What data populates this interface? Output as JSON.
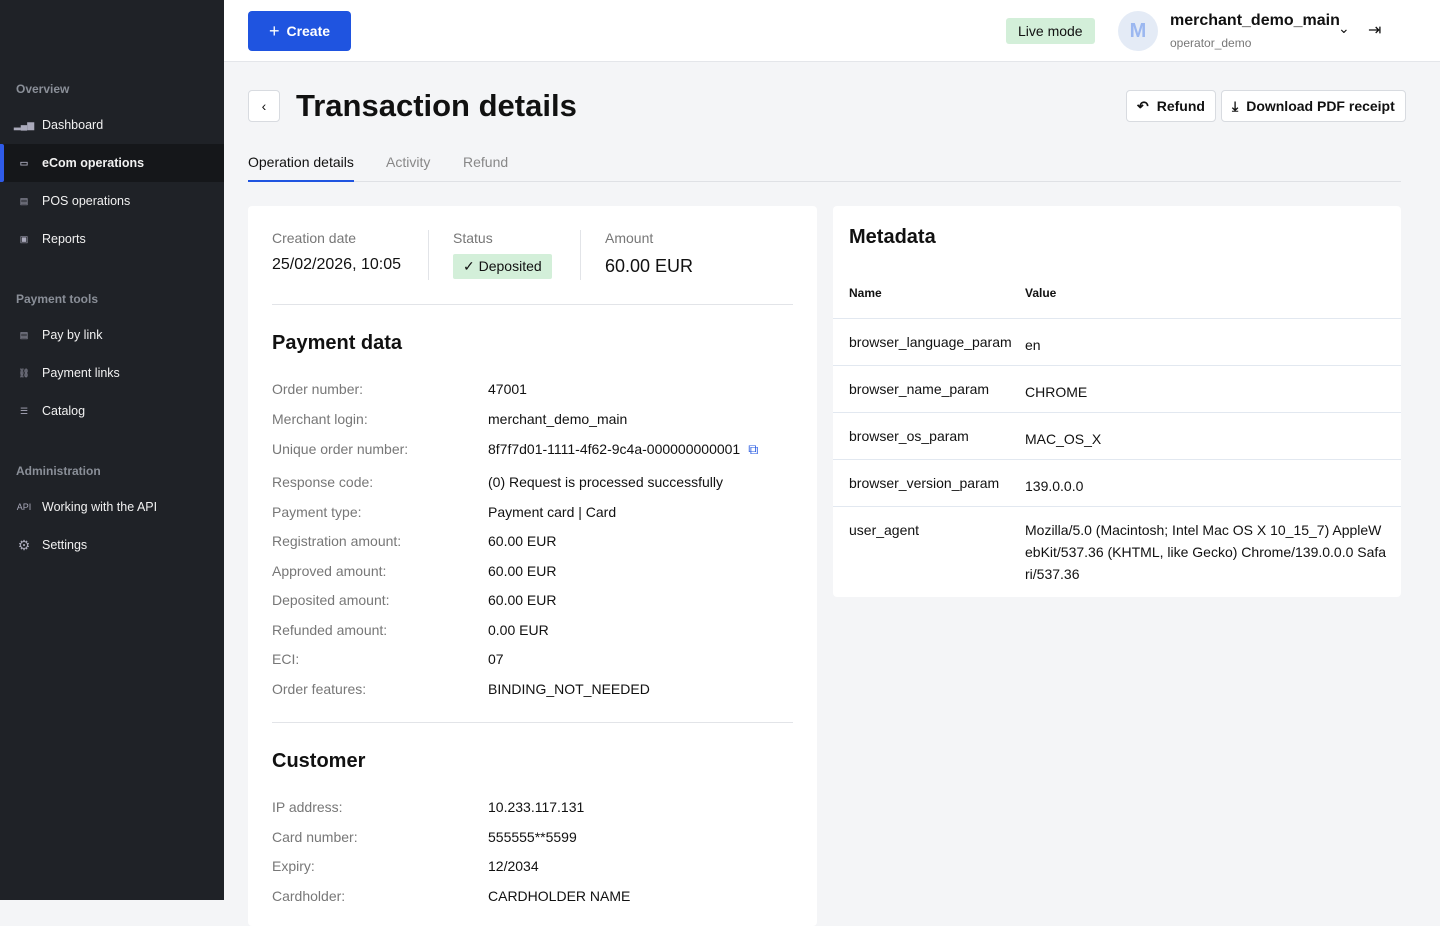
{
  "sidebar": {
    "sections": [
      {
        "title": "Overview",
        "items": [
          {
            "label": "Dashboard",
            "icon": "bar-chart-icon"
          },
          {
            "label": "eCom operations",
            "icon": "wallet-icon",
            "active": true
          },
          {
            "label": "POS operations",
            "icon": "pos-terminal-icon"
          },
          {
            "label": "Reports",
            "icon": "report-icon"
          }
        ]
      },
      {
        "title": "Payment tools",
        "items": [
          {
            "label": "Pay by link",
            "icon": "pay-by-link-icon"
          },
          {
            "label": "Payment links",
            "icon": "link-icon"
          },
          {
            "label": "Catalog",
            "icon": "list-icon"
          }
        ]
      },
      {
        "title": "Administration",
        "items": [
          {
            "label": "Working with the API",
            "icon": "api-icon",
            "icon_text": "API"
          },
          {
            "label": "Settings",
            "icon": "gear-icon"
          }
        ]
      }
    ]
  },
  "header": {
    "create_label": "Create",
    "mode": "Live mode",
    "avatar_letter": "M",
    "merchant": "merchant_demo_main",
    "operator": "operator_demo"
  },
  "page": {
    "title": "Transaction details",
    "refund_label": "Refund",
    "download_label": "Download PDF receipt",
    "tabs": [
      "Operation details",
      "Activity",
      "Refund"
    ]
  },
  "summary": {
    "creation_label": "Creation date",
    "creation_value": "25/02/2026, 10:05",
    "status_label": "Status",
    "status_value": "Deposited",
    "amount_label": "Amount",
    "amount_value": "60.00 EUR"
  },
  "payment": {
    "title": "Payment data",
    "rows": [
      [
        "Order number:",
        "47001"
      ],
      [
        "Merchant login:",
        "merchant_demo_main"
      ],
      [
        "Unique order number:",
        "8f7f7d01-1111-4f62-9c4a-000000000001"
      ],
      [
        "Response code:",
        "(0) Request is processed successfully"
      ],
      [
        "Payment type:",
        "Payment card | Card"
      ],
      [
        "Registration amount:",
        "60.00 EUR"
      ],
      [
        "Approved amount:",
        "60.00 EUR"
      ],
      [
        "Deposited amount:",
        "60.00 EUR"
      ],
      [
        "Refunded amount:",
        "0.00 EUR"
      ],
      [
        "ECI:",
        "07"
      ],
      [
        "Order features:",
        "BINDING_NOT_NEEDED"
      ]
    ]
  },
  "customer": {
    "title": "Customer",
    "rows": [
      [
        "IP address:",
        "10.233.117.131"
      ],
      [
        "Card number:",
        "555555**5599"
      ],
      [
        "Expiry:",
        "12/2034"
      ],
      [
        "Cardholder:",
        "CARDHOLDER NAME"
      ]
    ]
  },
  "metadata": {
    "title": "Metadata",
    "col_name": "Name",
    "col_value": "Value",
    "rows": [
      [
        "browser_language_param",
        "en"
      ],
      [
        "browser_name_param",
        "CHROME"
      ],
      [
        "browser_os_param",
        "MAC_OS_X"
      ],
      [
        "browser_version_param",
        "139.0.0.0"
      ],
      [
        "user_agent",
        "Mozilla/5.0 (Macintosh; Intel Mac OS X 10_15_7) AppleWebKit/537.36 (KHTML, like Gecko) Chrome/139.0.0.0 Safari/537.36"
      ]
    ]
  },
  "colors": {
    "accent": "#1f54e0",
    "sidebar": "#1f2227",
    "success_bg": "#d3efd9"
  }
}
